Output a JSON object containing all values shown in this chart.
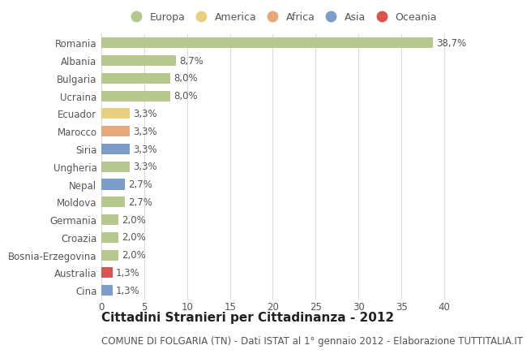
{
  "countries": [
    "Romania",
    "Albania",
    "Bulgaria",
    "Ucraina",
    "Ecuador",
    "Marocco",
    "Siria",
    "Ungheria",
    "Nepal",
    "Moldova",
    "Germania",
    "Croazia",
    "Bosnia-Erzegovina",
    "Australia",
    "Cina"
  ],
  "values": [
    38.7,
    8.7,
    8.0,
    8.0,
    3.3,
    3.3,
    3.3,
    3.3,
    2.7,
    2.7,
    2.0,
    2.0,
    2.0,
    1.3,
    1.3
  ],
  "labels": [
    "38,7%",
    "8,7%",
    "8,0%",
    "8,0%",
    "3,3%",
    "3,3%",
    "3,3%",
    "3,3%",
    "2,7%",
    "2,7%",
    "2,0%",
    "2,0%",
    "2,0%",
    "1,3%",
    "1,3%"
  ],
  "continents": [
    "Europa",
    "Europa",
    "Europa",
    "Europa",
    "America",
    "Africa",
    "Asia",
    "Europa",
    "Asia",
    "Europa",
    "Europa",
    "Europa",
    "Europa",
    "Oceania",
    "Asia"
  ],
  "continent_colors": {
    "Europa": "#b5c98e",
    "America": "#e8d080",
    "Africa": "#e8a87c",
    "Asia": "#7b9dc9",
    "Oceania": "#d9534f"
  },
  "legend_continents": [
    "Europa",
    "America",
    "Africa",
    "Asia",
    "Oceania"
  ],
  "title": "Cittadini Stranieri per Cittadinanza - 2012",
  "subtitle": "COMUNE DI FOLGARIA (TN) - Dati ISTAT al 1° gennaio 2012 - Elaborazione TUTTITALIA.IT",
  "xlim": [
    0,
    42
  ],
  "xticks": [
    0,
    5,
    10,
    15,
    20,
    25,
    30,
    35,
    40
  ],
  "background_color": "#ffffff",
  "grid_color": "#dddddd",
  "bar_height": 0.6,
  "title_fontsize": 11,
  "subtitle_fontsize": 8.5,
  "tick_fontsize": 8.5,
  "label_fontsize": 8.5,
  "legend_fontsize": 9
}
